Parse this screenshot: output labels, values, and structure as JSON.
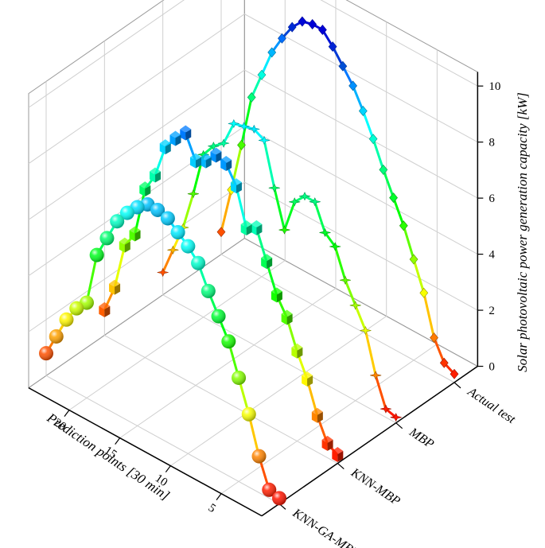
{
  "chart_data": {
    "type": "line",
    "style": "3d-ribbon",
    "title": "",
    "xlabel": "Prediction points [30 min]",
    "ylabel": "",
    "zlabel": "Solar photovoltaic power generation capacity [kW]",
    "x_ticks": [
      "5",
      "10",
      "15",
      "20"
    ],
    "z_ticks": [
      "0",
      "2",
      "4",
      "6",
      "8",
      "10"
    ],
    "xlim": [
      1,
      24
    ],
    "zlim": [
      0,
      10.5
    ],
    "grid": true,
    "series": [
      {
        "name": "KNN-GA-MBP",
        "marker": "sphere",
        "x": [
          1,
          2,
          3,
          4,
          5,
          6,
          7,
          8,
          9,
          10,
          11,
          12,
          13,
          14,
          15,
          16,
          17,
          18,
          19,
          20,
          21,
          22,
          23,
          24
        ],
        "values": [
          0.2,
          0.3,
          1.3,
          2.6,
          3.7,
          4.8,
          5.5,
          6.2,
          7.0,
          7.4,
          7.7,
          8.0,
          8.1,
          8.1,
          7.8,
          7.4,
          6.9,
          6.1,
          5.3,
          3.4,
          3.0,
          2.4,
          1.6,
          0.8
        ]
      },
      {
        "name": "KNN-MBP",
        "marker": "cube",
        "x": [
          1,
          2,
          3,
          4,
          5,
          6,
          7,
          8,
          9,
          10,
          11,
          12,
          13,
          14,
          15,
          16,
          17,
          18,
          19,
          20,
          21,
          22,
          23,
          24
        ],
        "values": [
          0.3,
          0.5,
          1.3,
          2.4,
          3.2,
          4.2,
          4.8,
          5.8,
          6.8,
          6.6,
          7.9,
          8.5,
          8.6,
          8.2,
          8.0,
          8.8,
          8.4,
          7.9,
          6.7,
          6.0,
          4.2,
          3.6,
          1.9,
          0.9
        ]
      },
      {
        "name": "MBP",
        "marker": "star",
        "x": [
          1,
          2,
          3,
          4,
          5,
          6,
          7,
          8,
          9,
          10,
          11,
          12,
          13,
          14,
          15,
          16,
          17,
          18,
          19,
          20,
          21,
          22,
          23,
          24
        ],
        "values": [
          0.2,
          0.3,
          1.3,
          2.7,
          3.4,
          4.1,
          5.1,
          5.4,
          6.3,
          6.3,
          5.9,
          4.7,
          6.0,
          7.5,
          7.7,
          7.6,
          7.5,
          6.6,
          6.3,
          5.8,
          4.2,
          2.8,
          1.8,
          0.8
        ]
      },
      {
        "name": "Actual test",
        "marker": "diamond",
        "x": [
          1,
          2,
          3,
          4,
          5,
          6,
          7,
          8,
          9,
          10,
          11,
          12,
          13,
          14,
          15,
          16,
          17,
          18,
          19,
          20,
          21,
          22,
          23,
          24
        ],
        "values": [
          0.3,
          0.5,
          1.2,
          2.6,
          3.6,
          4.6,
          5.4,
          6.2,
          7.1,
          7.9,
          8.6,
          9.1,
          9.6,
          10.0,
          10.0,
          9.9,
          9.5,
          8.9,
          8.2,
          7.2,
          6.2,
          4.3,
          2.5,
          0.8
        ]
      }
    ]
  }
}
